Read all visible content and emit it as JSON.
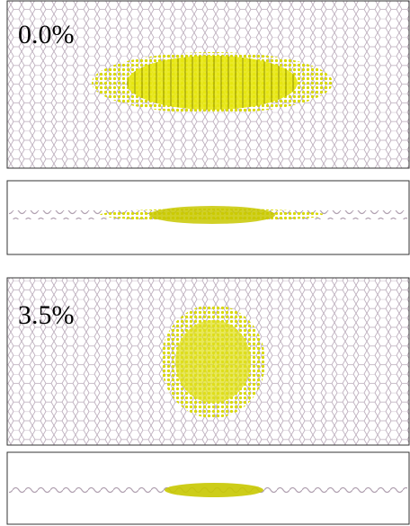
{
  "panels": [
    {
      "label": "0.0%"
    },
    {
      "label": "3.5%"
    }
  ]
}
